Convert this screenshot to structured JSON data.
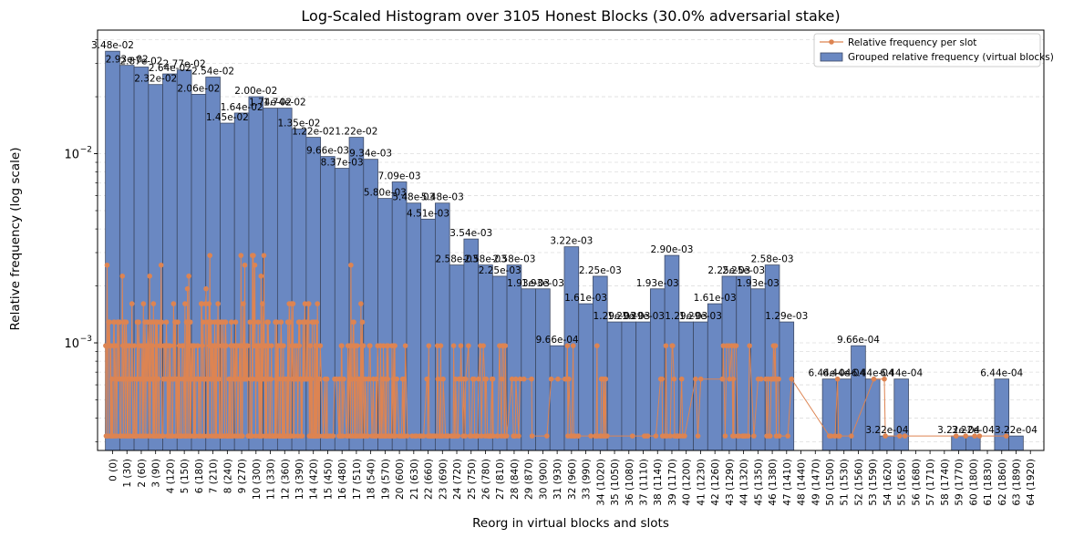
{
  "chart_data": {
    "type": "bar",
    "title": "Log-Scaled Histogram over 3105 Honest Blocks (30.0% adversarial stake)",
    "xlabel": "Reorg in virtual blocks and slots",
    "ylabel": "Relative frequency (log scale)",
    "yscale": "log",
    "ylim": [
      0.00027,
      0.045
    ],
    "y_ticks": [
      {
        "value": 0.001,
        "label": "10",
        "exp": "−3"
      },
      {
        "value": 0.01,
        "label": "10",
        "exp": "−2"
      }
    ],
    "grid": "horizontal dashed",
    "legend_position": "top-right",
    "bar_color": "#6a88c2",
    "line_color": "#dd8452",
    "categories": [
      "0 (0)",
      "1 (30)",
      "2 (60)",
      "3 (90)",
      "4 (120)",
      "5 (150)",
      "6 (180)",
      "7 (210)",
      "8 (240)",
      "9 (270)",
      "10 (300)",
      "11 (330)",
      "12 (360)",
      "13 (390)",
      "14 (420)",
      "15 (450)",
      "16 (480)",
      "17 (510)",
      "18 (540)",
      "19 (570)",
      "20 (600)",
      "21 (630)",
      "22 (660)",
      "23 (690)",
      "24 (720)",
      "25 (750)",
      "26 (780)",
      "27 (810)",
      "28 (840)",
      "29 (870)",
      "30 (900)",
      "31 (930)",
      "32 (960)",
      "33 (990)",
      "34 (1020)",
      "35 (1050)",
      "36 (1080)",
      "37 (1110)",
      "38 (1140)",
      "39 (1170)",
      "40 (1200)",
      "41 (1230)",
      "42 (1260)",
      "43 (1290)",
      "44 (1320)",
      "45 (1350)",
      "46 (1380)",
      "47 (1410)",
      "48 (1440)",
      "49 (1470)",
      "50 (1500)",
      "51 (1530)",
      "52 (1560)",
      "53 (1590)",
      "54 (1620)",
      "55 (1650)",
      "56 (1680)",
      "57 (1710)",
      "58 (1740)",
      "59 (1770)",
      "60 (1800)",
      "61 (1830)",
      "62 (1860)",
      "63 (1890)",
      "64 (1920)"
    ],
    "series": [
      {
        "name": "Grouped relative frequency (virtual blocks)",
        "type": "bar",
        "values": [
          0.0348,
          0.0293,
          0.0287,
          0.0232,
          0.0264,
          0.0277,
          0.0206,
          0.0254,
          0.0145,
          0.0164,
          0.02,
          0.0174,
          0.0174,
          0.0135,
          0.0122,
          0.00966,
          0.00837,
          0.0122,
          0.00934,
          0.0058,
          0.00709,
          0.00548,
          0.00451,
          0.00548,
          0.00258,
          0.00354,
          0.00258,
          0.00225,
          0.00258,
          0.00193,
          0.00193,
          0.000966,
          0.00322,
          0.00161,
          0.00225,
          0.00129,
          0.00129,
          0.00129,
          0.00193,
          0.0029,
          0.00129,
          0.00129,
          0.00161,
          0.00225,
          0.00225,
          0.00193,
          0.00258,
          0.00129,
          null,
          null,
          0.000644,
          0.000644,
          0.000966,
          0.000644,
          0.000322,
          0.000644,
          null,
          null,
          null,
          0.000322,
          0.000322,
          null,
          0.000644,
          0.000322,
          null
        ],
        "labels": [
          "3.48e-02",
          "2.93e-02",
          "2.87e-02",
          "2.32e-02",
          "2.64e-02",
          "2.77e-02",
          "2.06e-02",
          "2.54e-02",
          "1.45e-02",
          "1.64e-02",
          "2.00e-02",
          "1.74e-02",
          "1.74e-02",
          "1.35e-02",
          "1.22e-02",
          "9.66e-03",
          "8.37e-03",
          "1.22e-02",
          "9.34e-03",
          "5.80e-03",
          "7.09e-03",
          "5.48e-03",
          "4.51e-03",
          "5.48e-03",
          "2.58e-03",
          "3.54e-03",
          "2.58e-03",
          "2.25e-03",
          "2.58e-03",
          "1.93e-03",
          "1.93e-03",
          "9.66e-04",
          "3.22e-03",
          "1.61e-03",
          "2.25e-03",
          "1.29e-03",
          "1.29e-03",
          "1.29e-03",
          "1.93e-03",
          "2.90e-03",
          "1.29e-03",
          "1.29e-03",
          "1.61e-03",
          "2.25e-03",
          "2.25e-03",
          "1.93e-03",
          "2.58e-03",
          "1.29e-03",
          "",
          "",
          "6.44e-04",
          "6.44e-04",
          "9.66e-04",
          "6.44e-04",
          "3.22e-04",
          "6.44e-04",
          "",
          "",
          "",
          "3.22e-04",
          "3.22e-04",
          "",
          "6.44e-04",
          "3.22e-04",
          ""
        ]
      },
      {
        "name": "Relative frequency per slot",
        "type": "line",
        "note_values": "frequency units; approximated in script"
      }
    ]
  }
}
